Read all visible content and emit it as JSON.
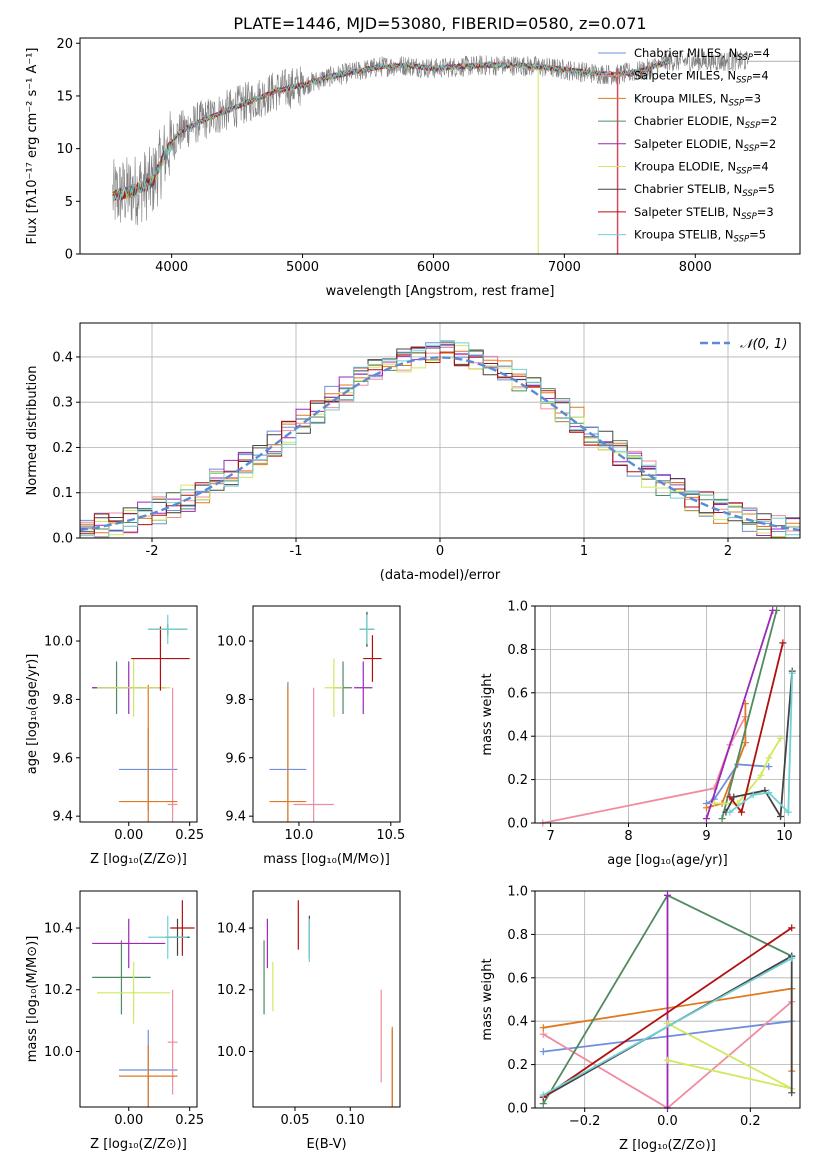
{
  "figure_title": "PLATE=1446, MJD=53080, FIBERID=0580, z=0.071",
  "colors": {
    "models": [
      "#6f8fdc",
      "#f08ca0",
      "#e07820",
      "#508a60",
      "#9a28b8",
      "#d2e860",
      "#444444",
      "#b01010",
      "#70d0d4"
    ],
    "data": "#808080"
  },
  "chart_data": [
    {
      "id": "spectrum",
      "type": "line",
      "title": "PLATE=1446, MJD=53080, FIBERID=0580, z=0.071",
      "xlabel": "wavelength [Angstrom, rest frame]",
      "ylabel": "Flux [fλ10⁻¹⁷ erg cm⁻² s⁻¹ A⁻¹]",
      "xlim": [
        3300,
        8800
      ],
      "ylim": [
        0,
        20.5
      ],
      "xticks": [
        4000,
        5000,
        6000,
        7000,
        8000
      ],
      "yticks": [
        0,
        5,
        10,
        15,
        20
      ],
      "grid": false,
      "legend_position": "upper-right",
      "legend": [
        {
          "name": "Chabrier MILES",
          "nssp": "4"
        },
        {
          "name": "Salpeter MILES",
          "nssp": "4"
        },
        {
          "name": "Kroupa MILES",
          "nssp": "3"
        },
        {
          "name": "Chabrier ELODIE",
          "nssp": "2"
        },
        {
          "name": "Salpeter ELODIE",
          "nssp": "2"
        },
        {
          "name": "Kroupa ELODIE",
          "nssp": "4"
        },
        {
          "name": "Chabrier STELIB",
          "nssp": "5"
        },
        {
          "name": "Salpeter STELIB",
          "nssp": "3"
        },
        {
          "name": "Kroupa STELIB",
          "nssp": "5"
        }
      ],
      "continuum": {
        "x": [
          3550,
          3700,
          3850,
          3950,
          4050,
          4200,
          4400,
          4600,
          4800,
          5000,
          5200,
          5400,
          5600,
          5800,
          6000,
          6200,
          6400,
          6600,
          6800,
          7000,
          7200,
          7400,
          7600,
          7800
        ],
        "y": [
          5.5,
          6.0,
          6.8,
          9.5,
          11.5,
          12.5,
          13.5,
          14.5,
          15.5,
          16.0,
          16.8,
          17.3,
          17.8,
          17.9,
          17.6,
          17.8,
          17.9,
          17.9,
          17.8,
          17.5,
          17.2,
          17.0,
          17.4,
          18.3
        ]
      },
      "model_xrange": [
        3550,
        7800
      ],
      "data_xrange": [
        3550,
        9200
      ]
    },
    {
      "id": "residuals",
      "type": "histogram",
      "xlabel": "(data-model)/error",
      "ylabel": "Normed distribution",
      "xlim": [
        -2.5,
        2.5
      ],
      "ylim": [
        0,
        0.475
      ],
      "xticks": [
        -2,
        -1,
        0,
        1,
        2
      ],
      "yticks": [
        0.0,
        0.1,
        0.2,
        0.3,
        0.4
      ],
      "grid": true,
      "bin_width": 0.1,
      "reference_curve": "normal(0,1)",
      "legend": [
        {
          "name": "𝒩(0, 1)"
        }
      ],
      "legend_position": "upper-right"
    },
    {
      "id": "age_vs_Z",
      "type": "errorbar",
      "xlabel": "Z [log₁₀(Z/Z⊙)]",
      "ylabel": "age  [log₁₀(age/yr)]",
      "xlim": [
        -0.2,
        0.28
      ],
      "ylim": [
        9.38,
        10.12
      ],
      "xticks": [
        0.0,
        0.25
      ],
      "xtick_labels": [
        "0.00",
        "0.25"
      ],
      "yticks": [
        9.4,
        9.6,
        9.8,
        10.0
      ],
      "grid": false,
      "points": [
        {
          "series": 0,
          "x": 0.08,
          "xerr": 0.12,
          "y": 9.56,
          "yerr": 0.14
        },
        {
          "series": 1,
          "x": 0.18,
          "xerr": 0.02,
          "y": 9.44,
          "yerr": 0.4
        },
        {
          "series": 2,
          "x": 0.08,
          "xerr": 0.12,
          "y": 9.45,
          "yerr": 0.4
        },
        {
          "series": 3,
          "x": -0.05,
          "xerr": 0.1,
          "y": 9.84,
          "yerr": 0.09
        },
        {
          "series": 4,
          "x": 0.0,
          "xerr": 0.15,
          "y": 9.84,
          "yerr": 0.09
        },
        {
          "series": 5,
          "x": 0.02,
          "xerr": 0.15,
          "y": 9.84,
          "yerr": 0.1
        },
        {
          "series": 6,
          "x": 0.16,
          "xerr": 0.08,
          "y": 10.04,
          "yerr": 0.02
        },
        {
          "series": 7,
          "x": 0.13,
          "xerr": 0.12,
          "y": 9.94,
          "yerr": 0.11
        },
        {
          "series": 8,
          "x": 0.16,
          "xerr": 0.08,
          "y": 10.04,
          "yerr": 0.05
        }
      ]
    },
    {
      "id": "age_vs_mass",
      "type": "errorbar",
      "xlabel": "mass [log₁₀(M/M⊙)]",
      "ylabel": "",
      "xlim": [
        9.75,
        10.55
      ],
      "ylim": [
        9.38,
        10.12
      ],
      "xticks": [
        10.0,
        10.5
      ],
      "xtick_labels": [
        "10.0",
        "10.5"
      ],
      "yticks": [
        9.4,
        9.6,
        9.8,
        10.0
      ],
      "grid": false,
      "points": [
        {
          "series": 0,
          "x": 9.94,
          "xerr": 0.1,
          "y": 9.56,
          "yerr": 0.3
        },
        {
          "series": 1,
          "x": 10.08,
          "xerr": 0.11,
          "y": 9.44,
          "yerr": 0.4
        },
        {
          "series": 2,
          "x": 9.94,
          "xerr": 0.1,
          "y": 9.45,
          "yerr": 0.4
        },
        {
          "series": 3,
          "x": 10.24,
          "xerr": 0.05,
          "y": 9.84,
          "yerr": 0.09
        },
        {
          "series": 4,
          "x": 10.35,
          "xerr": 0.05,
          "y": 9.84,
          "yerr": 0.09
        },
        {
          "series": 5,
          "x": 10.19,
          "xerr": 0.05,
          "y": 9.84,
          "yerr": 0.1
        },
        {
          "series": 6,
          "x": 10.37,
          "xerr": 0.04,
          "y": 10.04,
          "yerr": 0.06
        },
        {
          "series": 7,
          "x": 10.4,
          "xerr": 0.05,
          "y": 9.94,
          "yerr": 0.08
        },
        {
          "series": 8,
          "x": 10.37,
          "xerr": 0.04,
          "y": 10.04,
          "yerr": 0.05
        }
      ]
    },
    {
      "id": "weight_vs_age",
      "type": "line",
      "xlabel": "age  [log₁₀(age/yr)]",
      "ylabel": "mass weight",
      "xlim": [
        6.8,
        10.2
      ],
      "ylim": [
        0,
        1.0
      ],
      "xticks": [
        7,
        8,
        9,
        10
      ],
      "yticks": [
        0.0,
        0.2,
        0.4,
        0.6,
        0.8,
        1.0
      ],
      "grid": true,
      "series": [
        {
          "series": 0,
          "x": [
            9.0,
            9.1,
            9.4,
            9.8
          ],
          "y": [
            0.09,
            0.11,
            0.27,
            0.26
          ]
        },
        {
          "series": 1,
          "x": [
            6.9,
            9.1,
            9.3,
            9.5
          ],
          "y": [
            0.0,
            0.16,
            0.36,
            0.49
          ]
        },
        {
          "series": 2,
          "x": [
            9.0,
            9.2,
            9.5,
            9.5
          ],
          "y": [
            0.07,
            0.09,
            0.37,
            0.55
          ]
        },
        {
          "series": 3,
          "x": [
            9.2,
            9.9
          ],
          "y": [
            0.02,
            0.98
          ]
        },
        {
          "series": 4,
          "x": [
            9.0,
            9.85
          ],
          "y": [
            0.02,
            0.98
          ]
        },
        {
          "series": 5,
          "x": [
            9.1,
            9.4,
            9.7,
            9.8,
            9.95
          ],
          "y": [
            0.09,
            0.09,
            0.22,
            0.3,
            0.39
          ]
        },
        {
          "series": 6,
          "x": [
            9.25,
            9.35,
            9.75,
            9.95,
            10.1
          ],
          "y": [
            0.05,
            0.12,
            0.15,
            0.03,
            0.7
          ]
        },
        {
          "series": 7,
          "x": [
            9.3,
            9.45,
            9.98
          ],
          "y": [
            0.12,
            0.05,
            0.83
          ]
        },
        {
          "series": 8,
          "x": [
            9.3,
            9.6,
            9.8,
            10.05,
            10.1
          ],
          "y": [
            0.05,
            0.13,
            0.14,
            0.05,
            0.69
          ]
        }
      ]
    },
    {
      "id": "mass_vs_Z",
      "type": "errorbar",
      "xlabel": "Z [log₁₀(Z/Z⊙)]",
      "ylabel": "mass [log₁₀(M/M⊙)]",
      "xlim": [
        -0.2,
        0.28
      ],
      "ylim": [
        9.82,
        10.52
      ],
      "xticks": [
        0.0,
        0.25
      ],
      "xtick_labels": [
        "0.00",
        "0.25"
      ],
      "yticks": [
        10.0,
        10.2,
        10.4
      ],
      "grid": false,
      "points": [
        {
          "series": 0,
          "x": 0.08,
          "xerr": 0.12,
          "y": 9.94,
          "yerr": 0.13
        },
        {
          "series": 1,
          "x": 0.18,
          "xerr": 0.02,
          "y": 10.03,
          "yerr": 0.17
        },
        {
          "series": 2,
          "x": 0.08,
          "xerr": 0.12,
          "y": 9.92,
          "yerr": 0.1
        },
        {
          "series": 3,
          "x": -0.03,
          "xerr": 0.12,
          "y": 10.24,
          "yerr": 0.12
        },
        {
          "series": 4,
          "x": 0.0,
          "xerr": 0.15,
          "y": 10.35,
          "yerr": 0.08
        },
        {
          "series": 5,
          "x": 0.02,
          "xerr": 0.15,
          "y": 10.19,
          "yerr": 0.1
        },
        {
          "series": 6,
          "x": 0.2,
          "xerr": 0.05,
          "y": 10.37,
          "yerr": 0.06
        },
        {
          "series": 7,
          "x": 0.22,
          "xerr": 0.05,
          "y": 10.4,
          "yerr": 0.09
        },
        {
          "series": 8,
          "x": 0.16,
          "xerr": 0.08,
          "y": 10.37,
          "yerr": 0.07
        }
      ]
    },
    {
      "id": "mass_vs_ebv",
      "type": "errorbar",
      "xlabel": "E(B-V)",
      "ylabel": "",
      "xlim": [
        0.012,
        0.145
      ],
      "ylim": [
        9.82,
        10.52
      ],
      "xticks": [
        0.05,
        0.1
      ],
      "xtick_labels": [
        "0.05",
        "0.10"
      ],
      "yticks": [
        10.0,
        10.2,
        10.4
      ],
      "grid": false,
      "points": [
        {
          "series": 0,
          "x": 0.138,
          "xerr": 0,
          "y": 9.94,
          "yerr": 0.13
        },
        {
          "series": 1,
          "x": 0.128,
          "xerr": 0,
          "y": 10.05,
          "yerr": 0.15
        },
        {
          "series": 2,
          "x": 0.138,
          "xerr": 0,
          "y": 9.92,
          "yerr": 0.16
        },
        {
          "series": 3,
          "x": 0.022,
          "xerr": 0,
          "y": 10.24,
          "yerr": 0.12
        },
        {
          "series": 4,
          "x": 0.025,
          "xerr": 0,
          "y": 10.35,
          "yerr": 0.08
        },
        {
          "series": 5,
          "x": 0.03,
          "xerr": 0,
          "y": 10.21,
          "yerr": 0.08
        },
        {
          "series": 6,
          "x": 0.063,
          "xerr": 0,
          "y": 10.37,
          "yerr": 0.07
        },
        {
          "series": 7,
          "x": 0.053,
          "xerr": 0,
          "y": 10.41,
          "yerr": 0.08
        },
        {
          "series": 8,
          "x": 0.063,
          "xerr": 0,
          "y": 10.36,
          "yerr": 0.07
        }
      ]
    },
    {
      "id": "weight_vs_Z",
      "type": "line",
      "xlabel": "Z [log₁₀(Z/Z⊙)]",
      "ylabel": "mass weight",
      "xlim": [
        -0.32,
        0.32
      ],
      "ylim": [
        0,
        1.0
      ],
      "xticks": [
        -0.2,
        0.0,
        0.2
      ],
      "xtick_labels": [
        "−0.2",
        "0.0",
        "0.2"
      ],
      "yticks": [
        0.0,
        0.2,
        0.4,
        0.6,
        0.8,
        1.0
      ],
      "grid": true,
      "series": [
        {
          "series": 0,
          "x": [
            -0.3,
            0.3
          ],
          "y": [
            0.26,
            0.4
          ]
        },
        {
          "series": 1,
          "x": [
            -0.3,
            0.0,
            0.3
          ],
          "y": [
            0.34,
            0.0,
            0.49
          ]
        },
        {
          "series": 2,
          "x": [
            -0.3,
            0.3,
            0.3
          ],
          "y": [
            0.37,
            0.55,
            0.17
          ]
        },
        {
          "series": 3,
          "x": [
            -0.3,
            0.0,
            0.3
          ],
          "y": [
            0.02,
            0.98,
            0.7
          ]
        },
        {
          "series": 4,
          "x": [
            0.0,
            0.0
          ],
          "y": [
            0.0,
            0.98
          ]
        },
        {
          "series": 5,
          "x": [
            0.0,
            0.3,
            0.0
          ],
          "y": [
            0.39,
            0.09,
            0.22
          ]
        },
        {
          "series": 6,
          "x": [
            -0.3,
            0.3,
            0.3
          ],
          "y": [
            0.05,
            0.7,
            0.07
          ]
        },
        {
          "series": 7,
          "x": [
            -0.3,
            0.3
          ],
          "y": [
            0.05,
            0.83
          ]
        },
        {
          "series": 8,
          "x": [
            -0.3,
            0.3
          ],
          "y": [
            0.06,
            0.69
          ]
        }
      ]
    }
  ]
}
